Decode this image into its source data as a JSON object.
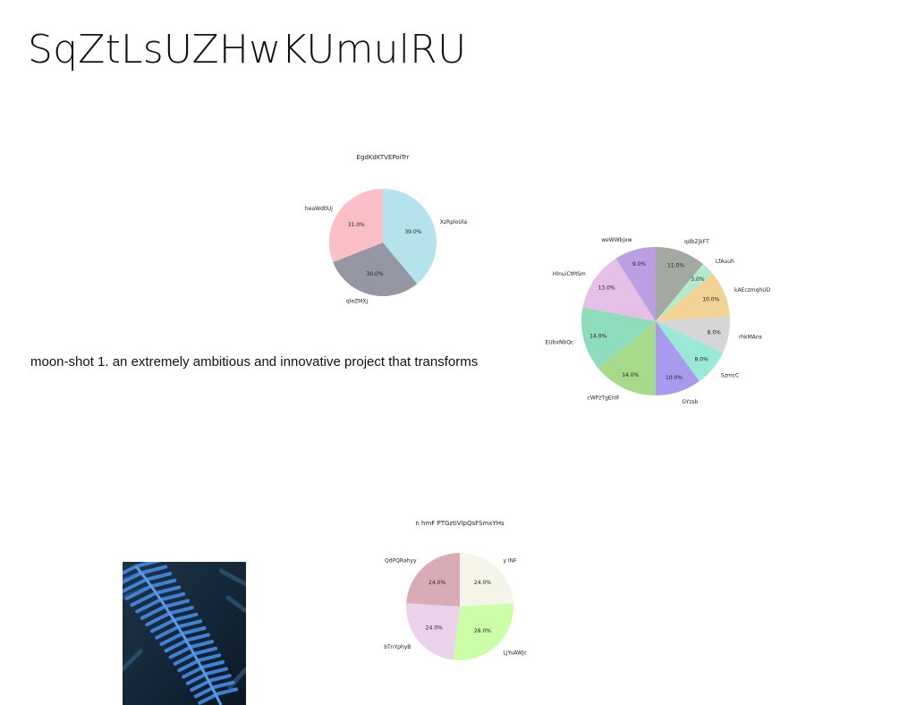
{
  "page": {
    "title": "SqZtLsUZHwKUmulRU",
    "caption": "moon-shot 1. an extremely ambitious and innovative project that transforms"
  },
  "image": {
    "subject": "fern-leaf"
  },
  "chart_data": [
    {
      "type": "pie",
      "title": "EgdKdKTVEPoiTrr",
      "slices": [
        {
          "label": "XzRploUla",
          "value": 39.0,
          "pct": "39.0%",
          "color": "#b4e3ec"
        },
        {
          "label": "qleZMXj",
          "value": 30.0,
          "pct": "30.0%",
          "color": "#9596a3"
        },
        {
          "label": "heaWdtlUj",
          "value": 31.0,
          "pct": "31.0%",
          "color": "#fbbfc7"
        }
      ]
    },
    {
      "type": "pie",
      "title": "",
      "slices": [
        {
          "label": "qdbZjkFT",
          "value": 11.0,
          "pct": "11.0%",
          "color": "#a3a8a0"
        },
        {
          "label": "LfAuuh",
          "value": 3.0,
          "pct": "3.0%",
          "color": "#b2ebc9"
        },
        {
          "label": "kAEczmqhUD",
          "value": 10.0,
          "pct": "10.0%",
          "color": "#f3d296"
        },
        {
          "label": "rhkMAns",
          "value": 8.0,
          "pct": "8.0%",
          "color": "#d4d6d8"
        },
        {
          "label": "SzmcC",
          "value": 8.0,
          "pct": "8.0%",
          "color": "#98e9d6"
        },
        {
          "label": "GYzsb",
          "value": 10.0,
          "pct": "10.0%",
          "color": "#a999ef"
        },
        {
          "label": "cWPzTgEnIF",
          "value": 14.0,
          "pct": "14.0%",
          "color": "#a7d98a"
        },
        {
          "label": "EUbxNbQc",
          "value": 14.0,
          "pct": "14.0%",
          "color": "#8ddcbc"
        },
        {
          "label": "HlnuiCtMSm",
          "value": 13.0,
          "pct": "13.0%",
          "color": "#e6bfe7"
        },
        {
          "label": "weWWbjxw",
          "value": 9.0,
          "pct": "9.0%",
          "color": "#bc9fe2"
        }
      ]
    },
    {
      "type": "pie",
      "title": "n hmF PTGztiVlpQsFSmxYHs",
      "slices": [
        {
          "label": "y INF",
          "value": 24.0,
          "pct": "24.0%",
          "color": "#f5f4e8"
        },
        {
          "label": "LjYuAWJc",
          "value": 28.0,
          "pct": "28.0%",
          "color": "#ccfda7"
        },
        {
          "label": "bTnYphyB",
          "value": 24.0,
          "pct": "24.0%",
          "color": "#ebd2ea"
        },
        {
          "label": "QdPQRahyy",
          "value": 24.0,
          "pct": "24.0%",
          "color": "#d9abb6"
        }
      ]
    }
  ]
}
